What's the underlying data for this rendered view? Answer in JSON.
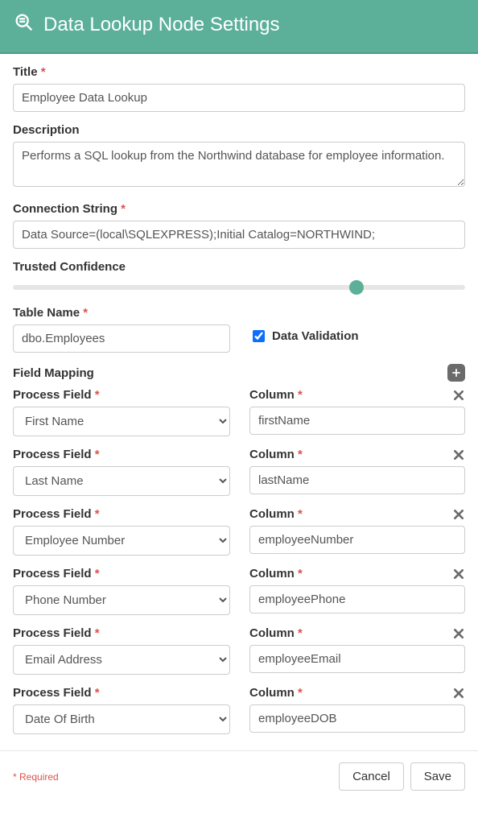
{
  "colors": {
    "header_bg": "#5cb09a",
    "header_border": "#4a9e89",
    "required": "#d9534f",
    "input_border": "#cccccc",
    "text": "#333333",
    "icon_gray": "#6b6b6b",
    "slider_track": "#e6e6e6",
    "slider_thumb": "#5cb09a",
    "footer_border": "#e5e5e5"
  },
  "header": {
    "title": "Data Lookup Node Settings"
  },
  "form": {
    "title_label": "Title",
    "title_value": "Employee Data Lookup",
    "description_label": "Description",
    "description_value": "Performs a SQL lookup from the Northwind database for employee information.",
    "connection_label": "Connection String",
    "connection_value": "Data Source=(local\\SQLEXPRESS);Initial Catalog=NORTHWIND;",
    "confidence_label": "Trusted Confidence",
    "confidence_percent": 76,
    "table_name_label": "Table Name",
    "table_name_value": "dbo.Employees",
    "data_validation_label": "Data Validation",
    "data_validation_checked": true
  },
  "mapping": {
    "section_label": "Field Mapping",
    "process_field_label": "Process Field",
    "column_label": "Column",
    "options": [
      "First Name",
      "Last Name",
      "Employee Number",
      "Phone Number",
      "Email Address",
      "Date Of Birth"
    ],
    "rows": [
      {
        "process_field": "First Name",
        "column": "firstName"
      },
      {
        "process_field": "Last Name",
        "column": "lastName"
      },
      {
        "process_field": "Employee Number",
        "column": "employeeNumber"
      },
      {
        "process_field": "Phone Number",
        "column": "employeePhone"
      },
      {
        "process_field": "Email Address",
        "column": "employeeEmail"
      },
      {
        "process_field": "Date Of Birth",
        "column": "employeeDOB"
      }
    ]
  },
  "footer": {
    "required_note": "* Required",
    "cancel": "Cancel",
    "save": "Save"
  }
}
